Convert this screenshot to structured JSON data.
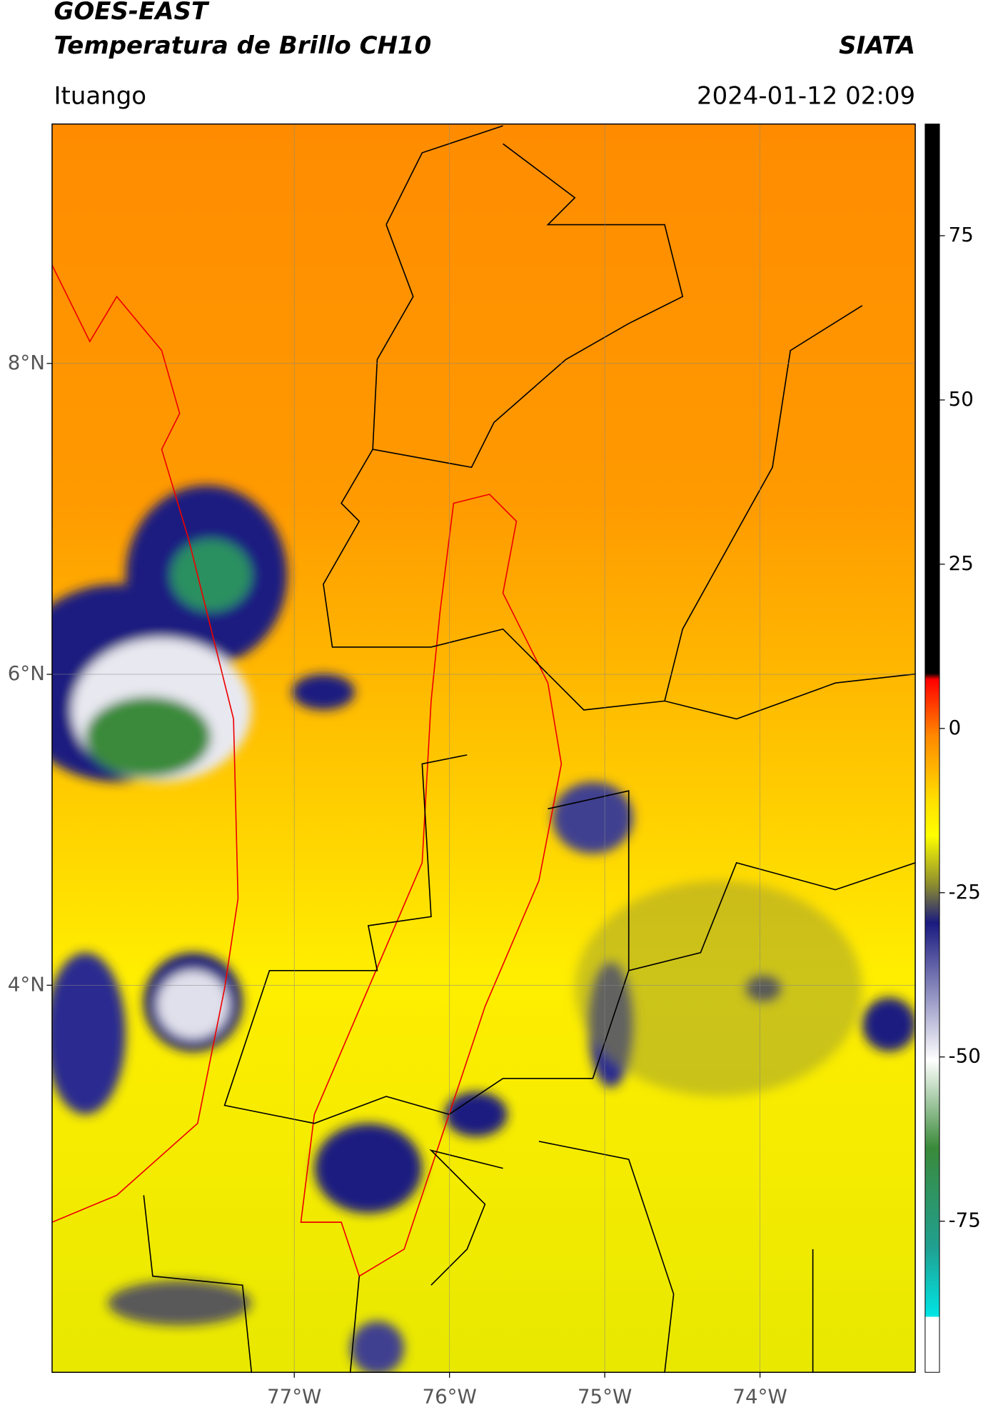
{
  "header": {
    "satellite": "GOES-EAST",
    "product": "Temperatura de Brillo CH10",
    "agency": "SIATA",
    "location": "Ituango",
    "timestamp": "2024-01-12 02:09"
  },
  "chart_data": {
    "type": "map",
    "xlim": [
      -78.56,
      -73.0
    ],
    "ylim": [
      1.51,
      9.54
    ],
    "xticks": [
      {
        "value": -77,
        "label": "77°W"
      },
      {
        "value": -76,
        "label": "76°W"
      },
      {
        "value": -75,
        "label": "75°W"
      },
      {
        "value": -74,
        "label": "74°W"
      }
    ],
    "yticks": [
      {
        "value": 4,
        "label": "4°N"
      },
      {
        "value": 6,
        "label": "6°N"
      },
      {
        "value": 8,
        "label": "8°N"
      }
    ],
    "grid": true,
    "colorbar": {
      "lim": [
        -98,
        92
      ],
      "ticks": [
        -75,
        -50,
        -25,
        0,
        25,
        50,
        75
      ]
    }
  }
}
